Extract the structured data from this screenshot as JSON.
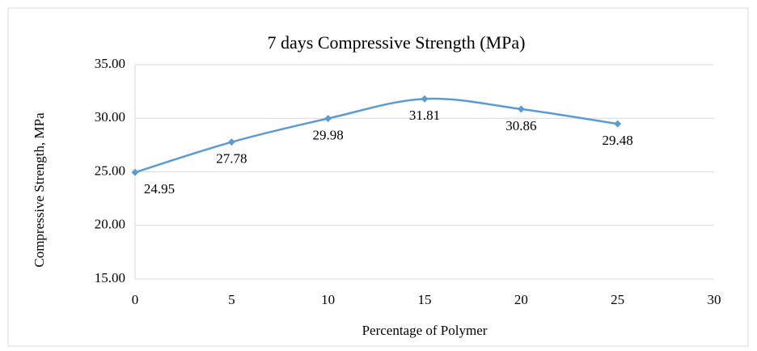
{
  "chart_data": {
    "type": "line",
    "title": "7 days Compressive Strength (MPa)",
    "x_label": "Percentage of Polymer",
    "y_label": "Compressive Strength, MPa",
    "x": [
      0,
      5,
      10,
      15,
      20,
      25
    ],
    "series": [
      {
        "name": "7 days Compressive Strength (MPa)",
        "color": "#5b9bd5",
        "values": [
          24.95,
          27.78,
          29.98,
          31.81,
          30.86,
          29.48
        ]
      }
    ],
    "xlim": [
      0,
      30
    ],
    "xticks": [
      0,
      5,
      10,
      15,
      20,
      25,
      30
    ],
    "ylim": [
      15,
      35
    ],
    "yticks": [
      {
        "value": 15,
        "label": "15.00"
      },
      {
        "value": 20,
        "label": "20.00"
      },
      {
        "value": 25,
        "label": "25.00"
      },
      {
        "value": 30,
        "label": "30.00"
      },
      {
        "value": 35,
        "label": "35.00"
      }
    ],
    "grid": true,
    "smooth": true
  }
}
